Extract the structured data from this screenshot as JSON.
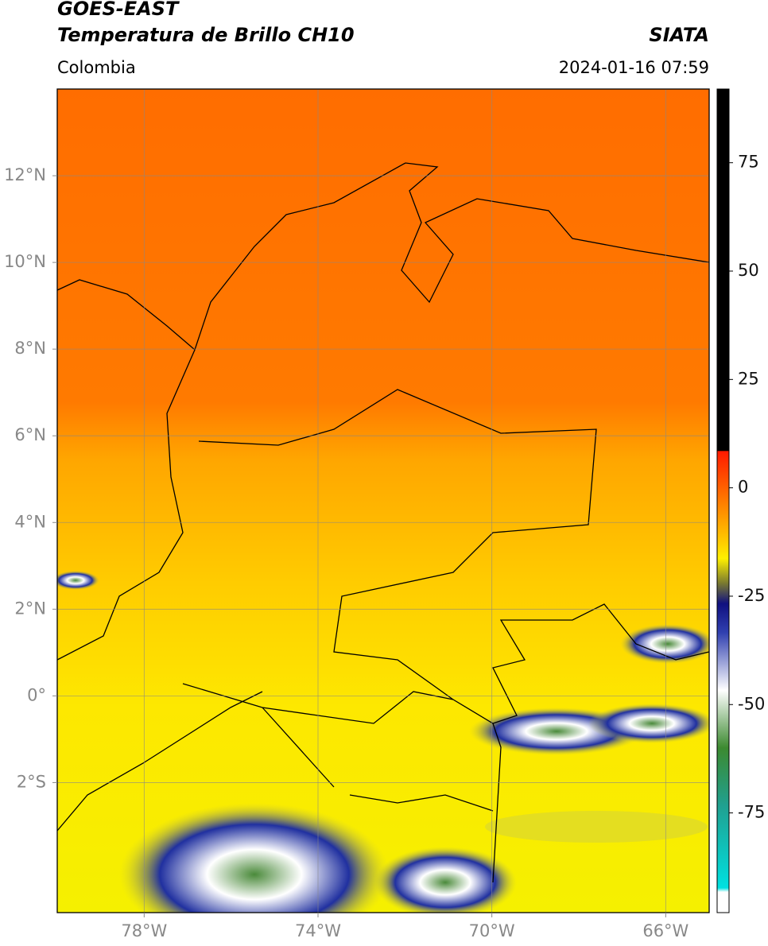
{
  "header": {
    "title": "GOES-EAST",
    "subtitle": "Temperatura de Brillo CH10",
    "region": "Colombia",
    "source": "SIATA",
    "timestamp": "2024-01-16 07:59"
  },
  "map": {
    "grid": true,
    "ylim": [
      -5,
      14
    ],
    "yticks": [
      {
        "value": 12,
        "label": "12°N"
      },
      {
        "value": 10,
        "label": "10°N"
      },
      {
        "value": 8,
        "label": "8°N"
      },
      {
        "value": 6,
        "label": "6°N"
      },
      {
        "value": 4,
        "label": "4°N"
      },
      {
        "value": 2,
        "label": "2°N"
      },
      {
        "value": 0,
        "label": "0°"
      },
      {
        "value": -2,
        "label": "2°S"
      }
    ],
    "xlim": [
      -80,
      -65
    ],
    "xticks": [
      {
        "value": -78,
        "label": "78°W"
      },
      {
        "value": -74,
        "label": "74°W"
      },
      {
        "value": -70,
        "label": "70°W"
      },
      {
        "value": -66,
        "label": "66°W"
      }
    ]
  },
  "colorbar": {
    "lim": [
      -98,
      92
    ],
    "ticks": [
      75,
      50,
      25,
      0,
      -25,
      -50,
      -75
    ]
  }
}
